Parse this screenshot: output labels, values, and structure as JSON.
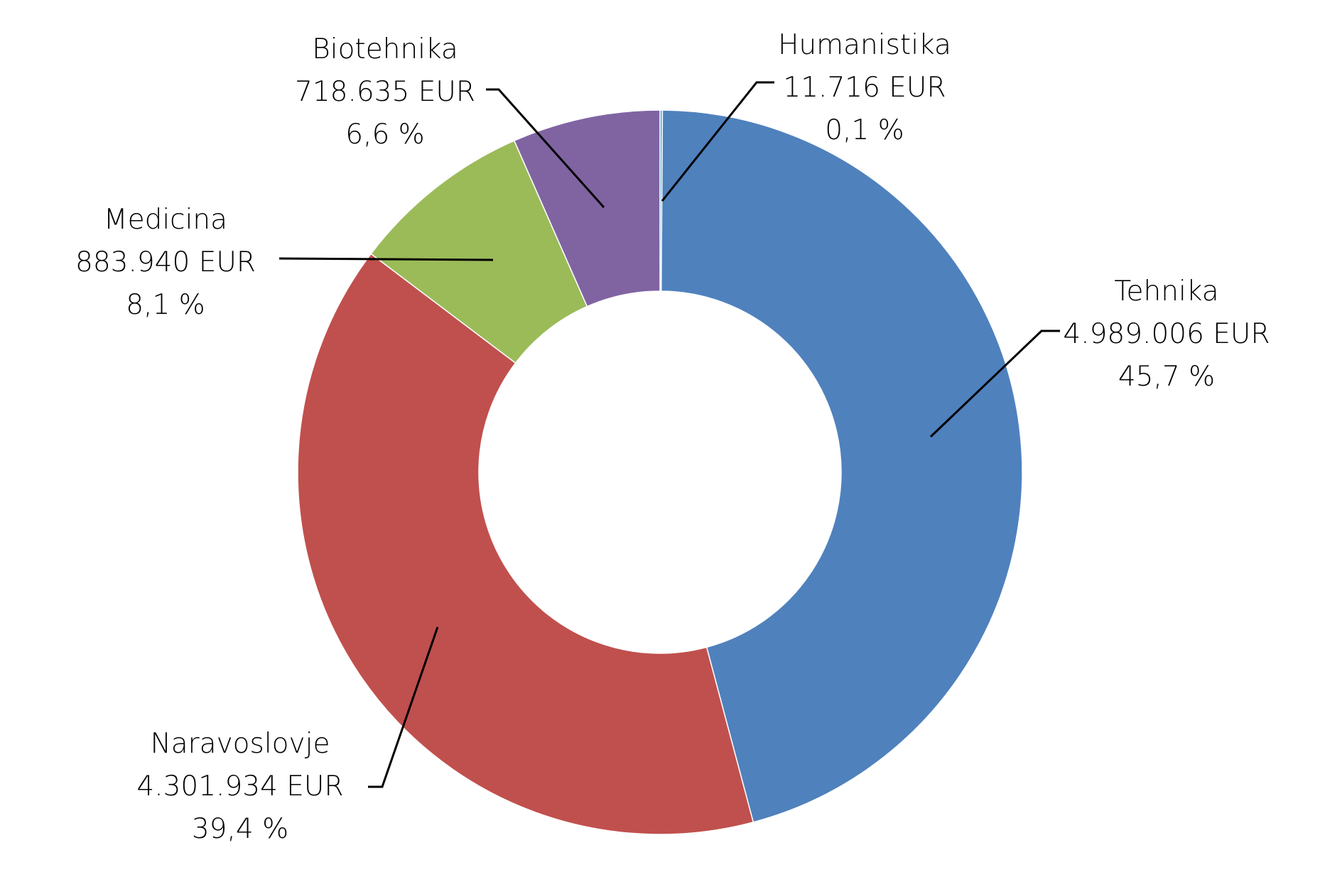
{
  "chart_data": {
    "type": "pie",
    "variant": "donut",
    "title": "",
    "legend": "none",
    "unit": "EUR",
    "slices": [
      {
        "label": "Humanistika",
        "value": 11716,
        "value_text": "11.716 EUR",
        "percent": 0.1,
        "percent_text": "0,1 %",
        "color": "#4bacc6"
      },
      {
        "label": "Tehnika",
        "value": 4989006,
        "value_text": "4.989.006 EUR",
        "percent": 45.7,
        "percent_text": "45,7 %",
        "color": "#4f81bd"
      },
      {
        "label": "Naravoslovje",
        "value": 4301934,
        "value_text": "4.301.934 EUR",
        "percent": 39.4,
        "percent_text": "39,4 %",
        "color": "#c0504d"
      },
      {
        "label": "Medicina",
        "value": 883940,
        "value_text": "883.940 EUR",
        "percent": 8.1,
        "percent_text": "8,1 %",
        "color": "#9bbb59"
      },
      {
        "label": "Biotehnika",
        "value": 718635,
        "value_text": "718.635 EUR",
        "percent": 6.6,
        "percent_text": "6,6 %",
        "color": "#8064a2"
      }
    ]
  }
}
